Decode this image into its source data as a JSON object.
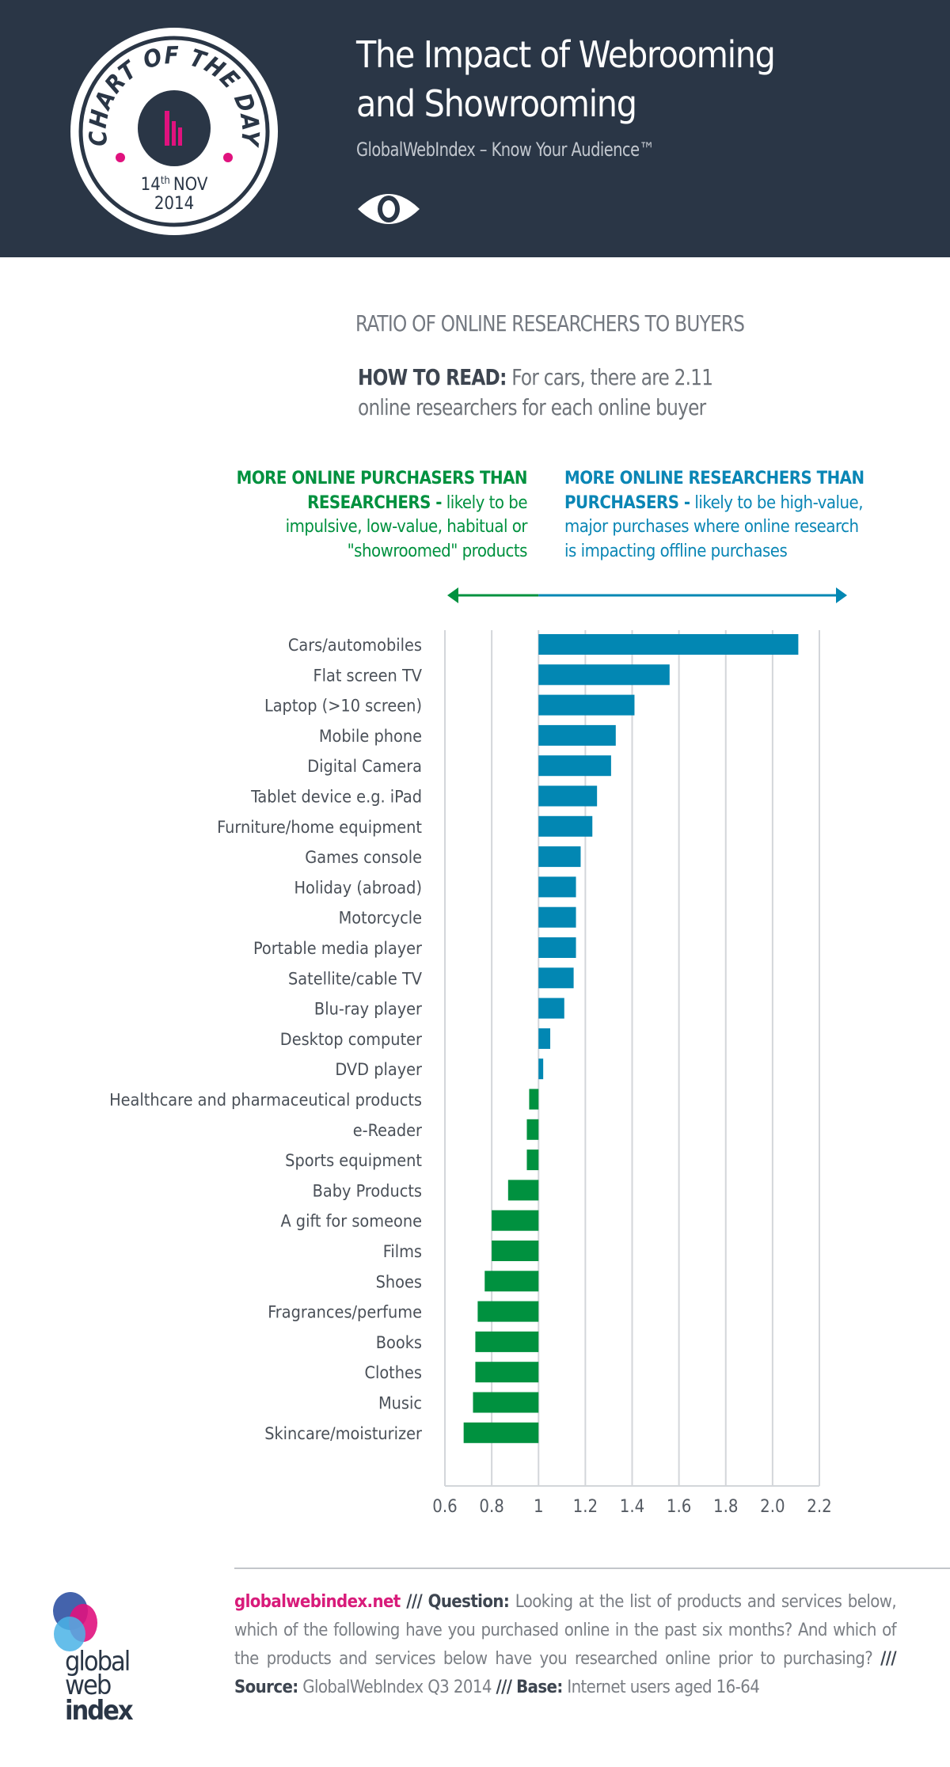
{
  "header": {
    "badge_top": "CHART OF THE DAY",
    "badge_day": "14",
    "badge_suffix": "th",
    "badge_month": "NOV",
    "badge_year": "2014",
    "title_line1": "The Impact of Webrooming",
    "title_line2": "and Showrooming",
    "subtitle": "GlobalWebIndex – Know Your Audience™",
    "icon": "eye-icon"
  },
  "ratio_heading": "RATIO OF ONLINE RESEARCHERS TO BUYERS",
  "how_to_read": {
    "label": "HOW TO READ:",
    "text1": "For cars, there are 2.11",
    "text2": "online researchers for each online buyer"
  },
  "legend": {
    "left_bold1": "MORE ONLINE PURCHASERS THAN",
    "left_bold2": "RESEARCHERS -",
    "left_text1": "likely to be",
    "left_text2": "impulsive, low-value, habitual or",
    "left_text3": "\"showroomed\" products",
    "right_bold1": "MORE ONLINE RESEARCHERS THAN",
    "right_bold2": "PURCHASERS -",
    "right_text1": "likely to be high-value,",
    "right_text2": "major purchases where online research",
    "right_text3": "is impacting offline purchases"
  },
  "colors": {
    "above": "#0287b3",
    "below": "#00913f",
    "header_bg": "#2a3646",
    "accent": "#e0127e",
    "grid": "#d3d6da"
  },
  "chart_data": {
    "type": "bar",
    "orientation": "horizontal",
    "baseline": 1,
    "categories": [
      "Cars/automobiles",
      "Flat screen TV",
      "Laptop (>10 screen)",
      "Mobile phone",
      "Digital Camera",
      "Tablet device e.g. iPad",
      "Furniture/home equipment",
      "Games console",
      "Holiday (abroad)",
      "Motorcycle",
      "Portable media player",
      "Satellite/cable TV",
      "Blu-ray player",
      "Desktop computer",
      "DVD player",
      "Healthcare and pharmaceutical products",
      "e-Reader",
      "Sports equipment",
      "Baby Products",
      "A gift for someone",
      "Films",
      "Shoes",
      "Fragrances/perfume",
      "Books",
      "Clothes",
      "Music",
      "Skincare/moisturizer"
    ],
    "values": [
      2.11,
      1.56,
      1.41,
      1.33,
      1.31,
      1.25,
      1.23,
      1.18,
      1.16,
      1.16,
      1.16,
      1.15,
      1.11,
      1.05,
      1.02,
      0.96,
      0.95,
      0.95,
      0.87,
      0.8,
      0.8,
      0.77,
      0.74,
      0.73,
      0.73,
      0.72,
      0.68
    ],
    "xlim": [
      0.6,
      2.2
    ],
    "xticks": [
      "0.6",
      "0.8",
      "1",
      "1.2",
      "1.4",
      "1.6",
      "1.8",
      "2.0",
      "2.2"
    ],
    "grid": true
  },
  "footer": {
    "site": "globalwebindex.net",
    "sep": "///",
    "question_label": "Question:",
    "question": "Looking at the list of products and services below, which of the following have you purchased online in the past six months? And which of the products and services below have you researched online prior to purchasing?",
    "source_label": "Source:",
    "source": "GlobalWebIndex Q3 2014",
    "base_label": "Base:",
    "base": "Internet users aged 16-64",
    "logo_line1": "global",
    "logo_line2": "web",
    "logo_line3": "index"
  }
}
